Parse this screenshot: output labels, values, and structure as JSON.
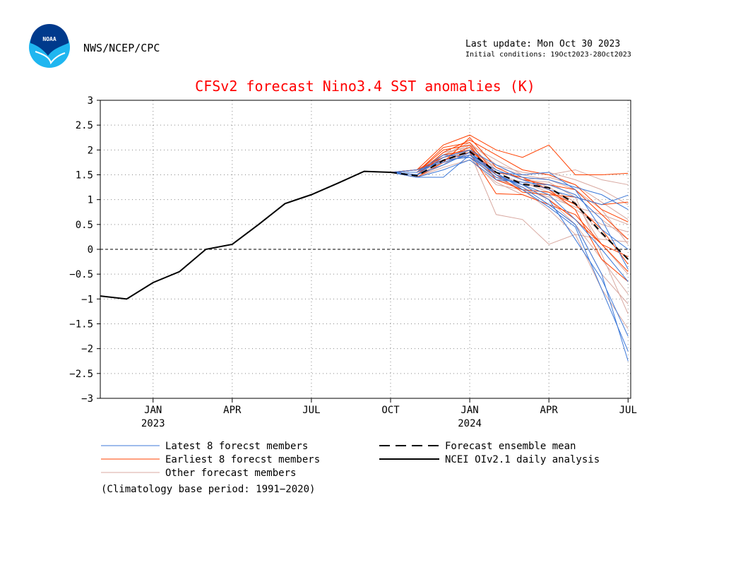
{
  "header": {
    "agency": "NWS/NCEP/CPC",
    "logo_text": "NOAA",
    "last_update": "Last update: Mon Oct 30 2023",
    "initial_conditions": "Initial conditions: 19Oct2023-28Oct2023"
  },
  "colors": {
    "title": "#ff0000",
    "latest": "#3c78d8",
    "earliest": "#ff4000",
    "other": "#d8a8a0",
    "analysis": "#000000",
    "zero_line": "#000000",
    "grid": "#888888",
    "logo_blue": "#1fb6f0",
    "logo_navy": "#003a8c"
  },
  "legend": {
    "latest": "Latest 8 forecst members",
    "earliest": "Earliest 8 forecst members",
    "other": "Other forecast members",
    "mean": "Forecast ensemble mean",
    "analysis": "NCEI OIv2.1 daily analysis",
    "climatology": "(Climatology base period: 1991−2020)"
  },
  "chart_data": {
    "type": "line",
    "title": "CFSv2 forecast Nino3.4 SST anomalies (K)",
    "ylim": [
      -3,
      3
    ],
    "yticks": [
      3,
      2.5,
      2,
      1.5,
      1,
      0.5,
      0,
      -0.5,
      -1,
      -1.5,
      -2,
      -2.5,
      -3
    ],
    "ytick_labels": [
      "3",
      "2.5",
      "2",
      "1.5",
      "1",
      "0.5",
      "0",
      "−0.5",
      "−1",
      "−1.5",
      "−2",
      "−2.5",
      "−3"
    ],
    "xlim": [
      -0.3,
      19.8
    ],
    "xticks": [
      {
        "x": 1.7,
        "label": "JAN",
        "sub": "2023"
      },
      {
        "x": 4.7,
        "label": "APR",
        "sub": ""
      },
      {
        "x": 7.7,
        "label": "JUL",
        "sub": ""
      },
      {
        "x": 10.7,
        "label": "OCT",
        "sub": ""
      },
      {
        "x": 13.7,
        "label": "JAN",
        "sub": "2024"
      },
      {
        "x": 16.7,
        "label": "APR",
        "sub": ""
      },
      {
        "x": 19.7,
        "label": "JUL",
        "sub": ""
      }
    ],
    "grid": true,
    "zero_line": true,
    "analysis": {
      "name": "NCEI OIv2.1 daily analysis",
      "x": [
        -0.3,
        0.7,
        1.7,
        2.7,
        3.7,
        4.7,
        5.7,
        6.7,
        7.7,
        8.7,
        9.7,
        10.7
      ],
      "y": [
        -0.94,
        -1.0,
        -0.67,
        -0.45,
        0.0,
        0.1,
        0.5,
        0.92,
        1.1,
        1.33,
        1.57,
        1.55
      ]
    },
    "forecast_x": [
      10.7,
      11.7,
      12.7,
      13.7,
      14.7,
      15.7,
      16.7,
      17.7,
      18.7,
      19.7
    ],
    "ensemble_mean": {
      "name": "Forecast ensemble mean",
      "y": [
        1.55,
        1.48,
        1.79,
        1.97,
        1.55,
        1.31,
        1.24,
        0.92,
        0.33,
        -0.2
      ]
    },
    "series": [
      {
        "group": "latest",
        "y": [
          1.55,
          1.45,
          1.45,
          1.9,
          1.5,
          1.25,
          0.9,
          0.5,
          -0.5,
          -2.25
        ]
      },
      {
        "group": "latest",
        "y": [
          1.55,
          1.5,
          1.7,
          1.95,
          1.55,
          1.2,
          0.85,
          0.45,
          -0.8,
          -2.05
        ]
      },
      {
        "group": "latest",
        "y": [
          1.55,
          1.55,
          1.8,
          1.85,
          1.45,
          1.3,
          1.0,
          0.2,
          -0.6,
          -1.75
        ]
      },
      {
        "group": "latest",
        "y": [
          1.55,
          1.6,
          1.75,
          1.9,
          1.6,
          1.4,
          1.2,
          1.05,
          0.9,
          1.09
        ]
      },
      {
        "group": "latest",
        "y": [
          1.55,
          1.5,
          1.85,
          2.0,
          1.7,
          1.45,
          1.4,
          1.25,
          1.1,
          0.8
        ]
      },
      {
        "group": "latest",
        "y": [
          1.55,
          1.45,
          1.6,
          1.8,
          1.4,
          1.35,
          1.3,
          1.1,
          0.6,
          -0.4
        ]
      },
      {
        "group": "latest",
        "y": [
          1.55,
          1.5,
          1.7,
          1.95,
          1.5,
          1.3,
          1.1,
          0.6,
          0.0,
          -0.65
        ]
      },
      {
        "group": "latest",
        "y": [
          1.55,
          1.55,
          1.9,
          1.85,
          1.55,
          1.5,
          1.55,
          1.2,
          0.4,
          0.0
        ]
      },
      {
        "group": "earliest",
        "y": [
          1.55,
          1.6,
          2.1,
          2.3,
          2.0,
          1.85,
          2.1,
          1.5,
          1.5,
          1.53
        ]
      },
      {
        "group": "earliest",
        "y": [
          1.55,
          1.55,
          2.05,
          2.15,
          1.5,
          1.15,
          1.1,
          1.05,
          0.9,
          0.95
        ]
      },
      {
        "group": "earliest",
        "y": [
          1.55,
          1.5,
          1.95,
          2.2,
          1.9,
          1.6,
          1.5,
          1.3,
          0.8,
          0.55
        ]
      },
      {
        "group": "earliest",
        "y": [
          1.55,
          1.6,
          1.85,
          2.05,
          1.5,
          1.3,
          1.0,
          0.6,
          0.1,
          -0.45
        ]
      },
      {
        "group": "earliest",
        "y": [
          1.55,
          1.55,
          2.0,
          2.1,
          1.4,
          1.2,
          1.15,
          0.9,
          0.4,
          -0.3
        ]
      },
      {
        "group": "earliest",
        "y": [
          1.55,
          1.45,
          1.75,
          2.25,
          1.65,
          1.4,
          1.3,
          1.2,
          0.7,
          0.2
        ]
      },
      {
        "group": "earliest",
        "y": [
          1.55,
          1.5,
          1.9,
          2.0,
          1.55,
          1.45,
          1.2,
          0.8,
          -0.2,
          -0.65
        ]
      },
      {
        "group": "earliest",
        "y": [
          1.55,
          1.6,
          1.8,
          1.95,
          1.12,
          1.1,
          0.9,
          0.7,
          0.1,
          -0.15
        ]
      },
      {
        "group": "other",
        "y": [
          1.55,
          1.6,
          1.9,
          2.1,
          1.8,
          1.5,
          1.55,
          1.4,
          1.2,
          0.9
        ]
      },
      {
        "group": "other",
        "y": [
          1.55,
          1.55,
          1.85,
          1.95,
          0.7,
          0.6,
          0.1,
          0.3,
          0.2,
          0.15
        ]
      },
      {
        "group": "other",
        "y": [
          1.55,
          1.5,
          1.75,
          1.9,
          1.4,
          1.25,
          1.0,
          0.5,
          -0.5,
          -1.1
        ]
      },
      {
        "group": "other",
        "y": [
          1.55,
          1.45,
          1.7,
          2.0,
          1.5,
          1.35,
          1.2,
          0.9,
          0.3,
          -0.2
        ]
      },
      {
        "group": "other",
        "y": [
          1.55,
          1.5,
          1.95,
          2.05,
          1.6,
          1.4,
          1.45,
          1.3,
          0.95,
          0.6
        ]
      },
      {
        "group": "other",
        "y": [
          1.55,
          1.55,
          1.8,
          1.85,
          1.3,
          1.2,
          0.8,
          0.3,
          -0.8,
          -1.6
        ]
      },
      {
        "group": "other",
        "y": [
          1.55,
          1.6,
          1.9,
          2.15,
          1.7,
          1.55,
          1.5,
          1.6,
          1.4,
          1.3
        ]
      },
      {
        "group": "other",
        "y": [
          1.55,
          1.45,
          1.65,
          1.8,
          1.35,
          1.1,
          0.9,
          0.5,
          -0.2,
          -0.9
        ]
      },
      {
        "group": "other",
        "y": [
          1.55,
          1.5,
          1.85,
          1.95,
          1.45,
          1.3,
          1.3,
          1.1,
          0.6,
          0.2
        ]
      },
      {
        "group": "other",
        "y": [
          1.55,
          1.55,
          1.9,
          2.0,
          1.55,
          1.45,
          1.25,
          0.95,
          0.1,
          -0.5
        ]
      },
      {
        "group": "other",
        "y": [
          1.55,
          1.6,
          1.8,
          1.9,
          1.5,
          1.35,
          1.15,
          0.8,
          0.5,
          0.35
        ]
      },
      {
        "group": "other",
        "y": [
          1.55,
          1.5,
          1.7,
          2.1,
          1.6,
          1.4,
          1.35,
          1.05,
          -0.1,
          -1.3
        ]
      },
      {
        "group": "other",
        "y": [
          1.55,
          1.55,
          1.75,
          1.9,
          1.45,
          1.2,
          1.05,
          0.85,
          0.7,
          0.5
        ]
      },
      {
        "group": "other",
        "y": [
          1.55,
          1.45,
          1.8,
          2.0,
          1.65,
          1.5,
          1.4,
          1.2,
          0.8,
          0.1
        ]
      }
    ]
  }
}
